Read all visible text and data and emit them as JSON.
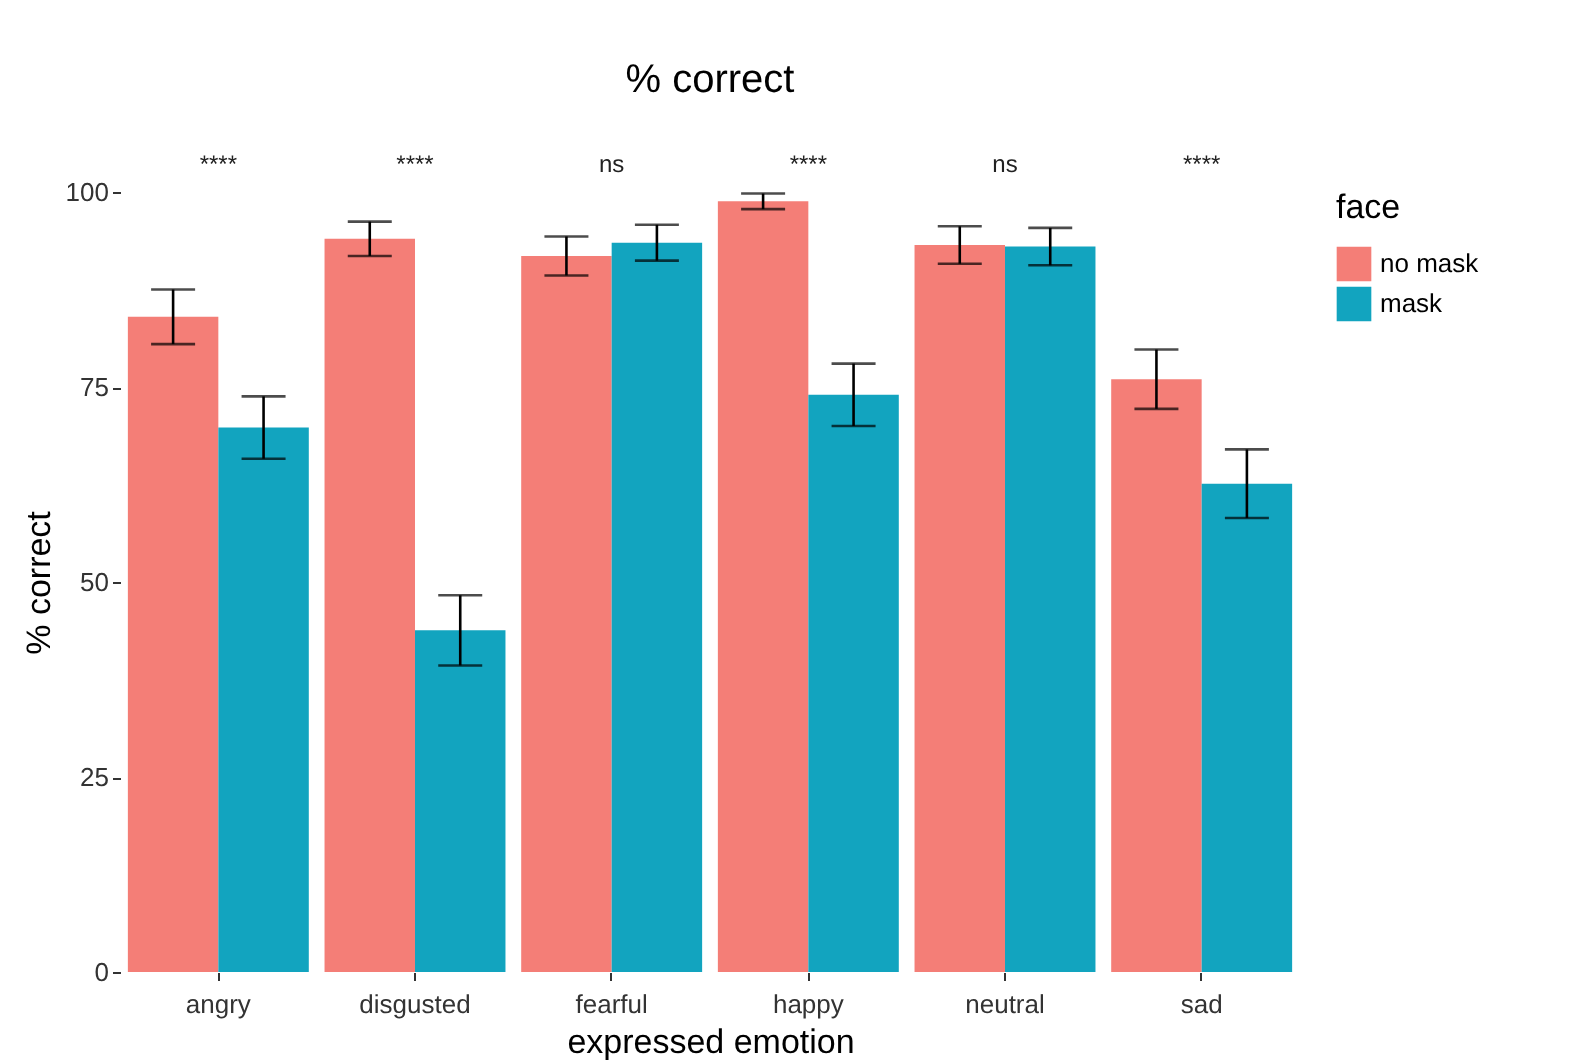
{
  "chart_data": {
    "type": "bar",
    "title": "% correct",
    "xlabel": "expressed emotion",
    "ylabel": "% correct",
    "legend_title": "face",
    "categories": [
      "angry",
      "disgusted",
      "fearful",
      "happy",
      "neutral",
      "sad"
    ],
    "series": [
      {
        "name": "no mask",
        "color": "#f47e77",
        "values": [
          84,
          94,
          91.8,
          98.8,
          93.2,
          76
        ],
        "errors": [
          3.5,
          2.2,
          2.5,
          1,
          2.4,
          3.8
        ]
      },
      {
        "name": "mask",
        "color": "#12a4bf",
        "values": [
          69.8,
          43.8,
          93.5,
          74,
          93,
          62.6
        ],
        "errors": [
          4,
          4.5,
          2.3,
          4,
          2.4,
          4.4
        ]
      }
    ],
    "annotations": [
      "****",
      "****",
      "ns",
      "****",
      "ns",
      "****"
    ],
    "ylim": [
      0,
      100
    ],
    "yticks": [
      0,
      25,
      50,
      75,
      100
    ],
    "grid": false,
    "legend": "right"
  }
}
